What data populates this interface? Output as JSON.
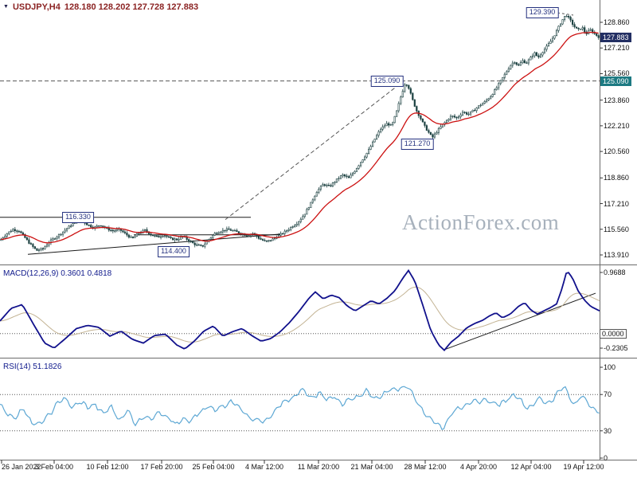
{
  "header": {
    "instrument": "USDJPY,H4",
    "ohlc": "128.180 128.202 127.728 127.883"
  },
  "icons": {
    "instrument_arrow": "▼"
  },
  "watermark": "ActionForex.com",
  "chart_data": {
    "type": "candlestick+indicators",
    "symbol": "USDJPY",
    "timeframe": "H4",
    "ohlc_display": {
      "open": "128.180",
      "high": "128.202",
      "low": "127.728",
      "close": "127.883"
    },
    "x_axis_labels": [
      "26 Jan 2022",
      "3 Feb 04:00",
      "10 Feb 12:00",
      "17 Feb 20:00",
      "25 Feb 04:00",
      "4 Mar 12:00",
      "11 Mar 20:00",
      "21 Mar 04:00",
      "28 Mar 12:00",
      "4 Apr 20:00",
      "12 Apr 04:00",
      "19 Apr 12:00"
    ],
    "price_panel": {
      "y_ticks": [
        "128.860",
        "127.210",
        "125.560",
        "123.860",
        "122.210",
        "120.560",
        "118.860",
        "117.210",
        "115.560",
        "113.910"
      ],
      "current_price_label": "127.883",
      "marked_level_label": "125.090",
      "annotations": {
        "resistance": {
          "label": "116.330",
          "value": 116.33
        },
        "support": {
          "label": "114.400",
          "value": 114.4
        },
        "peak1": {
          "label": "125.090",
          "value": 125.09
        },
        "low1": {
          "label": "121.270",
          "value": 121.27
        },
        "peak2": {
          "label": "129.390",
          "value": 129.39
        }
      },
      "lines": {
        "level_dashed": {
          "price": 125.09
        },
        "resistance_line": {
          "x1": 0,
          "x2": 315,
          "price": 116.33
        },
        "flat_support_line": {
          "x1": 168,
          "x2": 352,
          "price": 115.2
        },
        "rising_trendline": {
          "x1": 35,
          "p1": 113.95,
          "x2": 352,
          "p2": 115.25
        },
        "dashed_trendline": {
          "x1": 283,
          "p1": 116.18,
          "x2": 507,
          "p2": 125.09
        }
      },
      "close_path": [
        [
          0,
          114.85
        ],
        [
          8,
          115.25
        ],
        [
          16,
          115.55
        ],
        [
          24,
          115.45
        ],
        [
          30,
          115.1
        ],
        [
          38,
          114.6
        ],
        [
          46,
          114.2
        ],
        [
          54,
          114.3
        ],
        [
          62,
          114.75
        ],
        [
          70,
          115.05
        ],
        [
          78,
          115.35
        ],
        [
          86,
          115.7
        ],
        [
          94,
          116.0
        ],
        [
          102,
          116.15
        ],
        [
          110,
          115.85
        ],
        [
          118,
          115.65
        ],
        [
          126,
          115.85
        ],
        [
          134,
          115.6
        ],
        [
          142,
          115.45
        ],
        [
          150,
          115.55
        ],
        [
          158,
          115.25
        ],
        [
          166,
          114.95
        ],
        [
          174,
          115.3
        ],
        [
          182,
          115.5
        ],
        [
          190,
          115.2
        ],
        [
          198,
          115.05
        ],
        [
          206,
          115.2
        ],
        [
          214,
          114.95
        ],
        [
          222,
          114.9
        ],
        [
          230,
          115.1
        ],
        [
          238,
          114.8
        ],
        [
          246,
          114.55
        ],
        [
          254,
          114.45
        ],
        [
          262,
          114.9
        ],
        [
          270,
          115.3
        ],
        [
          278,
          115.45
        ],
        [
          286,
          115.55
        ],
        [
          294,
          115.45
        ],
        [
          302,
          115.3
        ],
        [
          310,
          115.15
        ],
        [
          318,
          115.3
        ],
        [
          326,
          114.95
        ],
        [
          334,
          114.75
        ],
        [
          342,
          114.9
        ],
        [
          350,
          115.15
        ],
        [
          358,
          115.4
        ],
        [
          366,
          115.7
        ],
        [
          374,
          116.0
        ],
        [
          382,
          116.5
        ],
        [
          390,
          117.2
        ],
        [
          398,
          118.0
        ],
        [
          406,
          118.45
        ],
        [
          414,
          118.3
        ],
        [
          422,
          118.7
        ],
        [
          430,
          119.05
        ],
        [
          438,
          118.85
        ],
        [
          446,
          119.35
        ],
        [
          454,
          119.95
        ],
        [
          462,
          120.55
        ],
        [
          470,
          121.3
        ],
        [
          478,
          122.0
        ],
        [
          486,
          122.35
        ],
        [
          492,
          122.2
        ],
        [
          498,
          123.1
        ],
        [
          504,
          124.2
        ],
        [
          509,
          125.0
        ],
        [
          513,
          124.7
        ],
        [
          518,
          123.9
        ],
        [
          523,
          123.2
        ],
        [
          528,
          122.7
        ],
        [
          533,
          122.2
        ],
        [
          538,
          121.8
        ],
        [
          543,
          121.45
        ],
        [
          548,
          121.8
        ],
        [
          553,
          122.1
        ],
        [
          560,
          122.5
        ],
        [
          567,
          122.85
        ],
        [
          574,
          122.7
        ],
        [
          581,
          123.1
        ],
        [
          588,
          122.95
        ],
        [
          595,
          123.2
        ],
        [
          602,
          123.5
        ],
        [
          609,
          123.75
        ],
        [
          616,
          124.1
        ],
        [
          623,
          124.6
        ],
        [
          629,
          125.1
        ],
        [
          635,
          125.6
        ],
        [
          641,
          126.1
        ],
        [
          646,
          126.35
        ],
        [
          651,
          126.05
        ],
        [
          656,
          126.4
        ],
        [
          661,
          126.25
        ],
        [
          666,
          126.55
        ],
        [
          671,
          126.9
        ],
        [
          676,
          126.6
        ],
        [
          681,
          126.95
        ],
        [
          686,
          127.25
        ],
        [
          691,
          127.6
        ],
        [
          696,
          128.0
        ],
        [
          701,
          128.5
        ],
        [
          706,
          129.0
        ],
        [
          711,
          129.35
        ],
        [
          716,
          129.0
        ],
        [
          721,
          128.6
        ],
        [
          726,
          128.35
        ],
        [
          731,
          128.55
        ],
        [
          736,
          128.1
        ],
        [
          741,
          128.4
        ],
        [
          746,
          128.15
        ],
        [
          753,
          127.88
        ]
      ]
    },
    "macd_panel": {
      "label": "MACD(12,26,9)",
      "values_text": "0.3601 0.4818",
      "y_ticks": [
        "0.9688",
        "-0.2305"
      ],
      "zero_label": "0.0000",
      "trendline": {
        "x1": 557,
        "v1": -0.26,
        "x2": 748,
        "v2": 0.64
      },
      "macd_path": [
        [
          0,
          0.2
        ],
        [
          14,
          0.4
        ],
        [
          28,
          0.46
        ],
        [
          42,
          0.15
        ],
        [
          56,
          -0.15
        ],
        [
          68,
          -0.23
        ],
        [
          82,
          -0.08
        ],
        [
          96,
          0.08
        ],
        [
          110,
          0.13
        ],
        [
          124,
          0.1
        ],
        [
          138,
          -0.04
        ],
        [
          152,
          0.04
        ],
        [
          166,
          -0.09
        ],
        [
          180,
          -0.15
        ],
        [
          194,
          -0.03
        ],
        [
          208,
          -0.01
        ],
        [
          222,
          -0.18
        ],
        [
          232,
          -0.245
        ],
        [
          244,
          -0.12
        ],
        [
          256,
          0.04
        ],
        [
          268,
          0.12
        ],
        [
          280,
          -0.04
        ],
        [
          292,
          0.03
        ],
        [
          304,
          0.08
        ],
        [
          316,
          -0.03
        ],
        [
          328,
          -0.12
        ],
        [
          340,
          -0.08
        ],
        [
          352,
          0.03
        ],
        [
          364,
          0.18
        ],
        [
          376,
          0.36
        ],
        [
          388,
          0.56
        ],
        [
          396,
          0.66
        ],
        [
          406,
          0.55
        ],
        [
          416,
          0.61
        ],
        [
          426,
          0.57
        ],
        [
          436,
          0.44
        ],
        [
          446,
          0.36
        ],
        [
          456,
          0.44
        ],
        [
          466,
          0.52
        ],
        [
          476,
          0.47
        ],
        [
          486,
          0.56
        ],
        [
          496,
          0.68
        ],
        [
          506,
          0.88
        ],
        [
          513,
          1.0
        ],
        [
          521,
          0.83
        ],
        [
          531,
          0.45
        ],
        [
          541,
          0.05
        ],
        [
          551,
          -0.18
        ],
        [
          558,
          -0.265
        ],
        [
          566,
          -0.14
        ],
        [
          576,
          -0.04
        ],
        [
          586,
          0.09
        ],
        [
          596,
          0.16
        ],
        [
          606,
          0.21
        ],
        [
          616,
          0.29
        ],
        [
          623,
          0.33
        ],
        [
          631,
          0.25
        ],
        [
          641,
          0.31
        ],
        [
          651,
          0.43
        ],
        [
          659,
          0.49
        ],
        [
          667,
          0.37
        ],
        [
          675,
          0.31
        ],
        [
          683,
          0.36
        ],
        [
          691,
          0.41
        ],
        [
          699,
          0.47
        ],
        [
          706,
          0.72
        ],
        [
          712,
          1.0
        ],
        [
          719,
          0.88
        ],
        [
          726,
          0.68
        ],
        [
          734,
          0.53
        ],
        [
          742,
          0.43
        ],
        [
          753,
          0.36
        ]
      ]
    },
    "rsi_panel": {
      "label": "RSI(14)",
      "value_text": "51.1826",
      "y_ticks": [
        "100",
        "70",
        "30",
        "0"
      ],
      "rsi_path": [
        [
          0,
          57
        ],
        [
          10,
          50
        ],
        [
          20,
          44
        ],
        [
          30,
          54
        ],
        [
          40,
          40
        ],
        [
          50,
          36
        ],
        [
          60,
          46
        ],
        [
          70,
          59
        ],
        [
          80,
          65
        ],
        [
          90,
          57
        ],
        [
          100,
          62
        ],
        [
          110,
          55
        ],
        [
          120,
          60
        ],
        [
          130,
          48
        ],
        [
          140,
          56
        ],
        [
          150,
          43
        ],
        [
          160,
          51
        ],
        [
          170,
          38
        ],
        [
          180,
          47
        ],
        [
          190,
          41
        ],
        [
          200,
          53
        ],
        [
          210,
          45
        ],
        [
          220,
          36
        ],
        [
          230,
          44
        ],
        [
          240,
          40
        ],
        [
          250,
          49
        ],
        [
          260,
          58
        ],
        [
          270,
          52
        ],
        [
          280,
          58
        ],
        [
          290,
          63
        ],
        [
          300,
          55
        ],
        [
          310,
          48
        ],
        [
          320,
          42
        ],
        [
          330,
          39
        ],
        [
          340,
          47
        ],
        [
          350,
          56
        ],
        [
          360,
          63
        ],
        [
          370,
          69
        ],
        [
          380,
          74
        ],
        [
          390,
          67
        ],
        [
          400,
          72
        ],
        [
          410,
          64
        ],
        [
          420,
          69
        ],
        [
          430,
          58
        ],
        [
          440,
          64
        ],
        [
          450,
          69
        ],
        [
          460,
          73
        ],
        [
          470,
          66
        ],
        [
          480,
          70
        ],
        [
          490,
          74
        ],
        [
          500,
          77
        ],
        [
          510,
          80
        ],
        [
          518,
          70
        ],
        [
          528,
          57
        ],
        [
          538,
          45
        ],
        [
          548,
          37
        ],
        [
          556,
          34
        ],
        [
          565,
          46
        ],
        [
          574,
          53
        ],
        [
          583,
          59
        ],
        [
          592,
          63
        ],
        [
          601,
          59
        ],
        [
          610,
          66
        ],
        [
          619,
          61
        ],
        [
          628,
          57
        ],
        [
          637,
          66
        ],
        [
          646,
          71
        ],
        [
          654,
          62
        ],
        [
          662,
          55
        ],
        [
          670,
          61
        ],
        [
          678,
          65
        ],
        [
          686,
          59
        ],
        [
          694,
          66
        ],
        [
          701,
          73
        ],
        [
          708,
          78
        ],
        [
          715,
          67
        ],
        [
          722,
          59
        ],
        [
          729,
          69
        ],
        [
          736,
          63
        ],
        [
          743,
          56
        ],
        [
          753,
          51.2
        ]
      ]
    }
  },
  "colors": {
    "candle_up": "#ffffff",
    "candle_down": "#1d4242",
    "candle_outline": "#1d4242",
    "ma_line": "#cc1111",
    "macd_line": "#11118c",
    "macd_signal": "#c3b393",
    "rsi_line": "#5ea8d4",
    "separator": "#6b6b6b",
    "trendline": "#1a1a1a",
    "dashed_line": "#555555",
    "tick": "#333333"
  }
}
